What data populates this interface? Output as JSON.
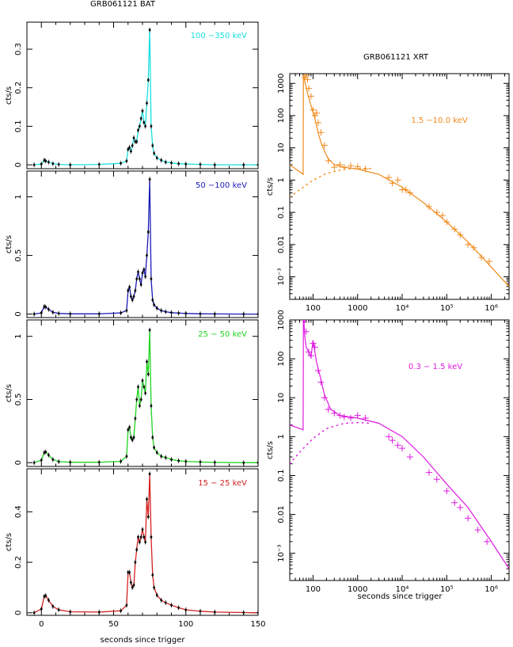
{
  "figure": {
    "bat_title": "GRB061121 BAT",
    "xrt_title": "GRB061121 XRT",
    "bat_xlabel": "seconds since trigger",
    "xrt_xlabel": "seconds since trigger",
    "ylabel": "cts/s"
  },
  "colors": {
    "cyan": "#1adfe0",
    "blue": "#1a1ab8",
    "green": "#22d422",
    "red": "#d42222",
    "orange": "#f08a1c",
    "magenta": "#e01ae0",
    "axis": "#000000"
  },
  "chart_data": [
    {
      "type": "line",
      "panel": "bat-1",
      "band_label": "100 −350 keV",
      "ylabel": "cts/s",
      "xlim": [
        -10,
        150
      ],
      "ylim": [
        -0.01,
        0.37
      ],
      "yticks": [
        0,
        0.1,
        0.2,
        0.3
      ],
      "ytick_labels": [
        "0",
        "0.1",
        "0.2",
        "0.3"
      ],
      "xticks": [
        0,
        50,
        100,
        150
      ],
      "color": "cyan",
      "x": [
        -5,
        0,
        2,
        3,
        5,
        8,
        12,
        20,
        40,
        55,
        59,
        60,
        61,
        62,
        63,
        64,
        65,
        66,
        67,
        68,
        69,
        70,
        71,
        72,
        73,
        74,
        75,
        76,
        77,
        78,
        80,
        83,
        86,
        90,
        95,
        100,
        110,
        120,
        140,
        150
      ],
      "y": [
        0,
        0.002,
        0.012,
        0.01,
        0.007,
        0.003,
        0.001,
        0,
        0.001,
        0.004,
        0.01,
        0.04,
        0.045,
        0.035,
        0.05,
        0.07,
        0.06,
        0.06,
        0.09,
        0.1,
        0.12,
        0.14,
        0.11,
        0.1,
        0.16,
        0.22,
        0.35,
        0.1,
        0.05,
        0.03,
        0.018,
        0.012,
        0.007,
        0.005,
        0.003,
        0.002,
        0.001,
        0,
        0,
        0
      ]
    },
    {
      "type": "line",
      "panel": "bat-2",
      "band_label": "50 −100 keV",
      "ylabel": "cts/s",
      "xlim": [
        -10,
        150
      ],
      "ylim": [
        -0.03,
        1.22
      ],
      "yticks": [
        0,
        0.5,
        1
      ],
      "ytick_labels": [
        "0",
        "0.5",
        "1"
      ],
      "xticks": [
        0,
        50,
        100,
        150
      ],
      "color": "blue",
      "x": [
        -5,
        0,
        2,
        3,
        5,
        8,
        12,
        20,
        40,
        55,
        59,
        60,
        61,
        62,
        63,
        64,
        65,
        66,
        67,
        68,
        69,
        70,
        71,
        72,
        73,
        74,
        75,
        76,
        77,
        78,
        80,
        83,
        86,
        90,
        95,
        100,
        110,
        120,
        140,
        150
      ],
      "y": [
        0,
        0.01,
        0.065,
        0.06,
        0.04,
        0.015,
        0.005,
        0.002,
        0.002,
        0.01,
        0.03,
        0.2,
        0.23,
        0.15,
        0.12,
        0.15,
        0.2,
        0.3,
        0.36,
        0.3,
        0.25,
        0.35,
        0.38,
        0.32,
        0.5,
        0.7,
        1.15,
        0.3,
        0.12,
        0.08,
        0.05,
        0.03,
        0.02,
        0.012,
        0.008,
        0.005,
        0.002,
        0.001,
        0,
        0
      ]
    },
    {
      "type": "line",
      "panel": "bat-3",
      "band_label": "25 − 50 keV",
      "ylabel": "cts/s",
      "xlim": [
        -10,
        150
      ],
      "ylim": [
        -0.03,
        1.13
      ],
      "yticks": [
        0,
        0.5,
        1
      ],
      "ytick_labels": [
        "0",
        "0.5",
        "1"
      ],
      "xticks": [
        0,
        50,
        100,
        150
      ],
      "color": "green",
      "x": [
        -5,
        0,
        2,
        3,
        5,
        8,
        12,
        20,
        40,
        55,
        59,
        60,
        61,
        62,
        63,
        64,
        65,
        66,
        67,
        68,
        69,
        70,
        71,
        72,
        73,
        74,
        75,
        76,
        77,
        78,
        80,
        83,
        86,
        90,
        95,
        100,
        110,
        120,
        140,
        150
      ],
      "y": [
        0,
        0.02,
        0.08,
        0.085,
        0.06,
        0.025,
        0.008,
        0.003,
        0.003,
        0.01,
        0.05,
        0.26,
        0.28,
        0.2,
        0.18,
        0.2,
        0.35,
        0.5,
        0.6,
        0.45,
        0.5,
        0.65,
        0.6,
        0.55,
        0.8,
        0.7,
        1.05,
        0.45,
        0.2,
        0.12,
        0.08,
        0.05,
        0.04,
        0.025,
        0.015,
        0.01,
        0.005,
        0.002,
        0,
        0
      ]
    },
    {
      "type": "line",
      "panel": "bat-4",
      "band_label": "15 − 25 keV",
      "ylabel": "cts/s",
      "xlabel": "seconds since trigger",
      "xlim": [
        -10,
        150
      ],
      "ylim": [
        -0.01,
        0.57
      ],
      "yticks": [
        0,
        0.2,
        0.4
      ],
      "ytick_labels": [
        "0",
        "0.2",
        "0.4"
      ],
      "xticks": [
        0,
        50,
        100,
        150
      ],
      "xtick_labels": [
        "0",
        "50",
        "100",
        "150"
      ],
      "color": "red",
      "x": [
        -5,
        0,
        2,
        3,
        5,
        8,
        12,
        20,
        40,
        55,
        59,
        60,
        61,
        62,
        63,
        64,
        65,
        66,
        67,
        68,
        69,
        70,
        71,
        72,
        73,
        74,
        75,
        76,
        77,
        78,
        80,
        83,
        86,
        90,
        95,
        100,
        110,
        120,
        140,
        150
      ],
      "y": [
        0,
        0.015,
        0.065,
        0.068,
        0.05,
        0.025,
        0.012,
        0.004,
        0.003,
        0.008,
        0.03,
        0.16,
        0.16,
        0.12,
        0.1,
        0.11,
        0.2,
        0.25,
        0.3,
        0.28,
        0.3,
        0.33,
        0.3,
        0.28,
        0.45,
        0.38,
        0.55,
        0.3,
        0.15,
        0.1,
        0.07,
        0.05,
        0.04,
        0.03,
        0.02,
        0.012,
        0.006,
        0.003,
        0.001,
        0
      ]
    },
    {
      "type": "scatter",
      "panel": "xrt-1",
      "band_label": "1.5 −10.0 keV",
      "ylabel": "cts/s",
      "x_scale": "log",
      "y_scale": "log",
      "xlim": [
        30,
        2500000
      ],
      "ylim": [
        0.0002,
        2000
      ],
      "xticks": [
        100,
        1000,
        10000,
        100000,
        1000000
      ],
      "xtick_labels": [
        "100",
        "1000",
        "10⁴",
        "10⁵",
        "10⁶"
      ],
      "yticks": [
        0.001,
        0.01,
        0.1,
        1,
        10,
        100,
        1000
      ],
      "ytick_labels": [
        "10⁻³",
        "0.01",
        "0.1",
        "1",
        "10",
        "100",
        "1000"
      ],
      "color": "orange",
      "model_x": [
        30,
        60,
        61,
        65,
        75,
        90,
        110,
        130,
        150,
        180,
        220,
        300,
        500,
        1000,
        3000,
        10000,
        30000,
        100000,
        300000,
        1000000,
        2500000
      ],
      "model_y": [
        3,
        1.5,
        1800,
        1200,
        500,
        200,
        80,
        30,
        15,
        8,
        4.5,
        3,
        2.5,
        2.2,
        1.5,
        0.6,
        0.2,
        0.05,
        0.012,
        0.002,
        0.0005
      ],
      "afterglow_x": [
        30,
        50,
        100,
        200,
        500,
        1000,
        2000
      ],
      "afterglow_y": [
        0.3,
        0.5,
        1,
        1.6,
        2.2,
        2.3,
        2.3
      ],
      "points_x": [
        65,
        70,
        75,
        80,
        90,
        100,
        110,
        120,
        130,
        150,
        180,
        220,
        300,
        400,
        500,
        700,
        1000,
        1500,
        5000,
        6000,
        8000,
        10000,
        12000,
        15000,
        40000,
        60000,
        80000,
        100000,
        150000,
        200000,
        300000,
        400000,
        600000,
        900000
      ],
      "points_y": [
        1500,
        1800,
        1300,
        700,
        400,
        150,
        100,
        120,
        60,
        30,
        12,
        4,
        2.5,
        3,
        2.5,
        2.8,
        2.6,
        2.2,
        1.2,
        0.8,
        1.0,
        0.5,
        0.5,
        0.4,
        0.15,
        0.1,
        0.08,
        0.05,
        0.03,
        0.02,
        0.01,
        0.008,
        0.004,
        0.003
      ]
    },
    {
      "type": "scatter",
      "panel": "xrt-2",
      "band_label": "0.3 − 1.5 keV",
      "ylabel": "cts/s",
      "xlabel": "seconds since trigger",
      "x_scale": "log",
      "y_scale": "log",
      "xlim": [
        30,
        2500000
      ],
      "ylim": [
        0.0002,
        1000
      ],
      "xticks": [
        100,
        1000,
        10000,
        100000,
        1000000
      ],
      "xtick_labels": [
        "100",
        "1000",
        "10⁴",
        "10⁵",
        "10⁶"
      ],
      "yticks": [
        0.001,
        0.01,
        0.1,
        1,
        10,
        100,
        1000
      ],
      "ytick_labels": [
        "10⁻³",
        "0.01",
        "0.1",
        "1",
        "10",
        "100",
        "1000"
      ],
      "color": "magenta",
      "model_x": [
        30,
        60,
        61,
        65,
        70,
        80,
        90,
        100,
        110,
        120,
        150,
        180,
        250,
        400,
        1000,
        3000,
        10000,
        30000,
        100000,
        300000,
        1000000,
        2500000
      ],
      "model_y": [
        2,
        1.5,
        1500,
        400,
        200,
        150,
        110,
        300,
        150,
        80,
        30,
        12,
        5,
        3.5,
        3,
        2.2,
        1,
        0.3,
        0.06,
        0.015,
        0.002,
        0.0004
      ],
      "afterglow_x": [
        30,
        50,
        100,
        200,
        500,
        1000,
        2000
      ],
      "afterglow_y": [
        0.2,
        0.4,
        0.9,
        1.6,
        2.2,
        2.3,
        2.2
      ],
      "points_x": [
        65,
        70,
        80,
        90,
        100,
        110,
        130,
        150,
        180,
        220,
        300,
        400,
        500,
        700,
        1000,
        1500,
        5000,
        6000,
        8000,
        10000,
        15000,
        40000,
        60000,
        100000,
        150000,
        200000,
        300000,
        500000,
        800000
      ],
      "points_y": [
        1000,
        500,
        150,
        120,
        250,
        200,
        50,
        25,
        10,
        5,
        4,
        3.5,
        3.2,
        3,
        3.5,
        3,
        1.0,
        0.8,
        0.6,
        0.5,
        0.3,
        0.12,
        0.08,
        0.04,
        0.02,
        0.015,
        0.008,
        0.004,
        0.002
      ]
    }
  ]
}
